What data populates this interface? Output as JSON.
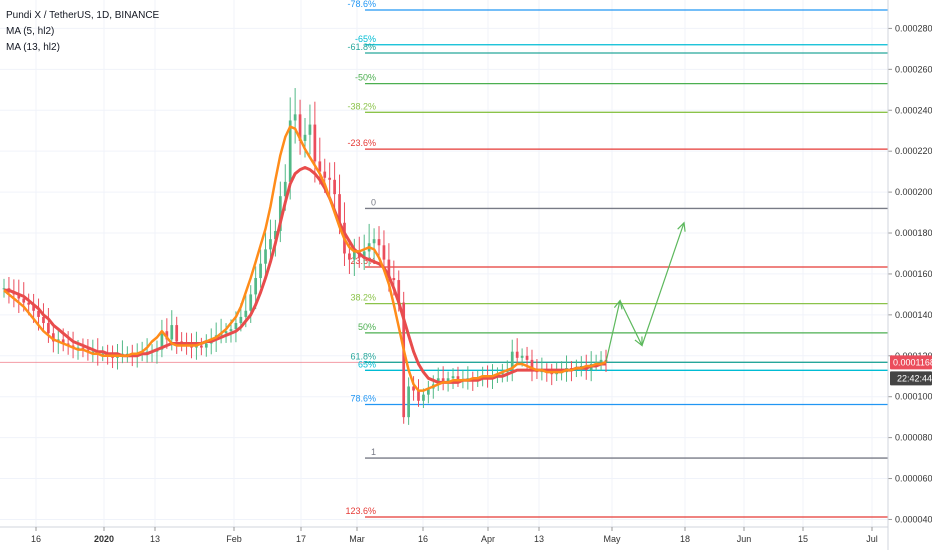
{
  "legend": {
    "symbol": "Pundi X / TetherUS, 1D, BINANCE",
    "ma1": "MA (5, hl2)",
    "ma2": "MA (13, hl2)"
  },
  "price_badge": "0.0001168",
  "time_badge": "22:42:44",
  "colors": {
    "up": "#26a69a",
    "up_candle": "#53b987",
    "down": "#eb4d5c",
    "ma_fast": "#ff8c1a",
    "ma_slow": "#e84c4c",
    "arrow": "#5cb85c",
    "badge": "#eb4d5c",
    "badge_time": "#444"
  },
  "chart_data": {
    "type": "candlestick",
    "title": "Pundi X / TetherUS, 1D, BINANCE",
    "yaxis": {
      "ticks": [
        "0.0002800",
        "0.0002600",
        "0.0002400",
        "0.0002200",
        "0.0002000",
        "0.0001800",
        "0.0001600",
        "0.0001400",
        "0.0001200",
        "0.0001000",
        "0.0000800",
        "0.0000600",
        "0.0000400"
      ],
      "range": [
        3.95e-05,
        0.0002895
      ]
    },
    "xaxis": {
      "ticks": [
        "16",
        "2020",
        "13",
        "Feb",
        "17",
        "Mar",
        "16",
        "Apr",
        "13",
        "May",
        "18",
        "Jun",
        "15",
        "Jul"
      ]
    },
    "fib_upper": {
      "levels": [
        {
          "label": "-78.6%",
          "price": 0.000289,
          "color": "#2196f3"
        },
        {
          "label": "-65%",
          "price": 0.000272,
          "color": "#00bcd4"
        },
        {
          "label": "-61.8%",
          "price": 0.000268,
          "color": "#26a69a"
        },
        {
          "label": "-50%",
          "price": 0.000253,
          "color": "#4caf50"
        },
        {
          "label": "-38.2%",
          "price": 0.000239,
          "color": "#8bc34a"
        },
        {
          "label": "-23.6%",
          "price": 0.000221,
          "color": "#e53935"
        },
        {
          "label": "0",
          "price": 0.000192,
          "color": "#787b86"
        }
      ]
    },
    "fib_lower": {
      "levels": [
        {
          "label": "23.6%",
          "price": 0.0001634,
          "color": "#e53935"
        },
        {
          "label": "38.2%",
          "price": 0.0001455,
          "color": "#8bc34a"
        },
        {
          "label": "50%",
          "price": 0.0001312,
          "color": "#4caf50"
        },
        {
          "label": "61.8%",
          "price": 0.0001168,
          "color": "#26a69a"
        },
        {
          "label": "65%",
          "price": 0.0001129,
          "color": "#00bcd4"
        },
        {
          "label": "78.6%",
          "price": 9.62e-05,
          "color": "#2196f3"
        },
        {
          "label": "1",
          "price": 7e-05,
          "color": "#787b86"
        },
        {
          "label": "123.6%",
          "price": 4.12e-05,
          "color": "#e53935"
        }
      ]
    },
    "current_price": 0.0001168,
    "candles_close": [
      0.000153,
      0.000151,
      0.00015,
      0.000148,
      0.000146,
      0.000145,
      0.000142,
      0.000139,
      0.000136,
      0.000131,
      0.000127,
      0.000128,
      0.000126,
      0.000125,
      0.000124,
      0.000124,
      0.000123,
      0.000122,
      0.000122,
      0.000121,
      0.000121,
      0.00012,
      0.000119,
      0.00012,
      0.000121,
      0.000121,
      0.00012,
      0.000121,
      0.000121,
      0.000122,
      0.000122,
      0.000123,
      0.000132,
      0.000128,
      0.000135,
      0.000127,
      0.000126,
      0.000125,
      0.000124,
      0.000125,
      0.000124,
      0.000126,
      0.000128,
      0.00013,
      0.000131,
      0.000132,
      0.000133,
      0.000136,
      0.000139,
      0.000142,
      0.00015,
      0.000158,
      0.000165,
      0.000172,
      0.000177,
      0.000181,
      0.000198,
      0.000205,
      0.000235,
      0.000238,
      0.000225,
      0.000228,
      0.000233,
      0.000215,
      0.00021,
      0.000207,
      0.000206,
      0.000199,
      0.000185,
      0.00017,
      0.000167,
      0.000171,
      0.000168,
      0.000171,
      0.000175,
      0.000177,
      0.000174,
      0.000167,
      0.000158,
      0.000157,
      0.000146,
      9e-05,
      0.000105,
      0.000103,
      9.8e-05,
      0.000101,
      0.000104,
      0.000106,
      0.000109,
      0.000107,
      0.000109,
      0.00011,
      0.000108,
      0.000108,
      0.000109,
      0.000108,
      0.000109,
      0.00011,
      0.000109,
      0.00011,
      0.000111,
      0.000112,
      0.000113,
      0.000122,
      0.000119,
      0.00012,
      0.000118,
      0.000113,
      0.000112,
      0.000113,
      0.000112,
      0.000111,
      0.000112,
      0.000112,
      0.000114,
      0.000113,
      0.000114,
      0.000115,
      0.000113,
      0.000116,
      0.000117,
      0.000118,
      0.000117
    ],
    "ma_fast": [
      0.000152,
      0.00015,
      0.000148,
      0.000146,
      0.000144,
      0.000141,
      0.000138,
      0.000135,
      0.000132,
      0.00013,
      0.000128,
      0.000127,
      0.000126,
      0.000125,
      0.000124,
      0.000123,
      0.000123,
      0.000122,
      0.000121,
      0.000121,
      0.00012,
      0.00012,
      0.00012,
      0.00012,
      0.00012,
      0.00012,
      0.000121,
      0.000121,
      0.000122,
      0.000124,
      0.000127,
      0.000129,
      0.000132,
      0.000129,
      0.000126,
      0.000125,
      0.000125,
      0.000125,
      0.000125,
      0.000125,
      0.000126,
      0.000127,
      0.000128,
      0.000129,
      0.000131,
      0.000133,
      0.000136,
      0.000139,
      0.000144,
      0.000151,
      0.000158,
      0.000166,
      0.000174,
      0.000182,
      0.000193,
      0.000206,
      0.000218,
      0.000227,
      0.000232,
      0.000231,
      0.000226,
      0.000221,
      0.000217,
      0.000213,
      0.000209,
      0.000204,
      0.000197,
      0.00019,
      0.000183,
      0.000177,
      0.000173,
      0.000171,
      0.000171,
      0.000172,
      0.000173,
      0.000172,
      0.000168,
      0.000162,
      0.000155,
      0.000145,
      0.000134,
      0.000123,
      0.000113,
      0.000106,
      0.000103,
      0.000103,
      0.000104,
      0.000105,
      0.000106,
      0.000107,
      0.000107,
      0.000108,
      0.000108,
      0.000108,
      0.000108,
      0.000109,
      0.000109,
      0.00011,
      0.00011,
      0.00011,
      0.000111,
      0.000112,
      0.000113,
      0.000114,
      0.000116,
      0.000116,
      0.000115,
      0.000114,
      0.000113,
      0.000113,
      0.000112,
      0.000112,
      0.000112,
      0.000112,
      0.000113,
      0.000113,
      0.000114,
      0.000114,
      0.000115,
      0.000115,
      0.000116,
      0.000116,
      0.000117
    ],
    "ma_slow": [
      0.000152,
      0.000152,
      0.000151,
      0.00015,
      0.000149,
      0.000147,
      0.000145,
      0.000143,
      0.00014,
      0.000138,
      0.000135,
      0.000133,
      0.000131,
      0.000129,
      0.000127,
      0.000126,
      0.000125,
      0.000124,
      0.000123,
      0.000122,
      0.000122,
      0.000121,
      0.000121,
      0.000121,
      0.00012,
      0.00012,
      0.00012,
      0.00012,
      0.000121,
      0.000121,
      0.000122,
      0.000123,
      0.000124,
      0.000125,
      0.000126,
      0.000126,
      0.000126,
      0.000126,
      0.000126,
      0.000126,
      0.000126,
      0.000127,
      0.000127,
      0.000128,
      0.000129,
      0.00013,
      0.000131,
      0.000132,
      0.000134,
      0.000137,
      0.00014,
      0.000145,
      0.000151,
      0.000158,
      0.000166,
      0.000175,
      0.000185,
      0.000195,
      0.000204,
      0.000209,
      0.000211,
      0.000212,
      0.000211,
      0.000209,
      0.000206,
      0.000202,
      0.000197,
      0.000191,
      0.000185,
      0.00018,
      0.000176,
      0.000172,
      0.00017,
      0.000168,
      0.000167,
      0.000166,
      0.000165,
      0.000163,
      0.000159,
      0.000153,
      0.000146,
      0.000138,
      0.00013,
      0.000122,
      0.000116,
      0.000112,
      0.000109,
      0.000108,
      0.000107,
      0.000107,
      0.000107,
      0.000107,
      0.000107,
      0.000108,
      0.000108,
      0.000108,
      0.000108,
      0.000109,
      0.000109,
      0.000109,
      0.00011,
      0.00011,
      0.000111,
      0.000112,
      0.000113,
      0.000113,
      0.000113,
      0.000113,
      0.000113,
      0.000113,
      0.000113,
      0.000113,
      0.000113,
      0.000113,
      0.000113,
      0.000113,
      0.000114,
      0.000114,
      0.000114,
      0.000115,
      0.000115,
      0.000116,
      0.000116
    ],
    "projection_path": [
      0.000117,
      0.000147,
      0.000125,
      0.000185
    ]
  }
}
